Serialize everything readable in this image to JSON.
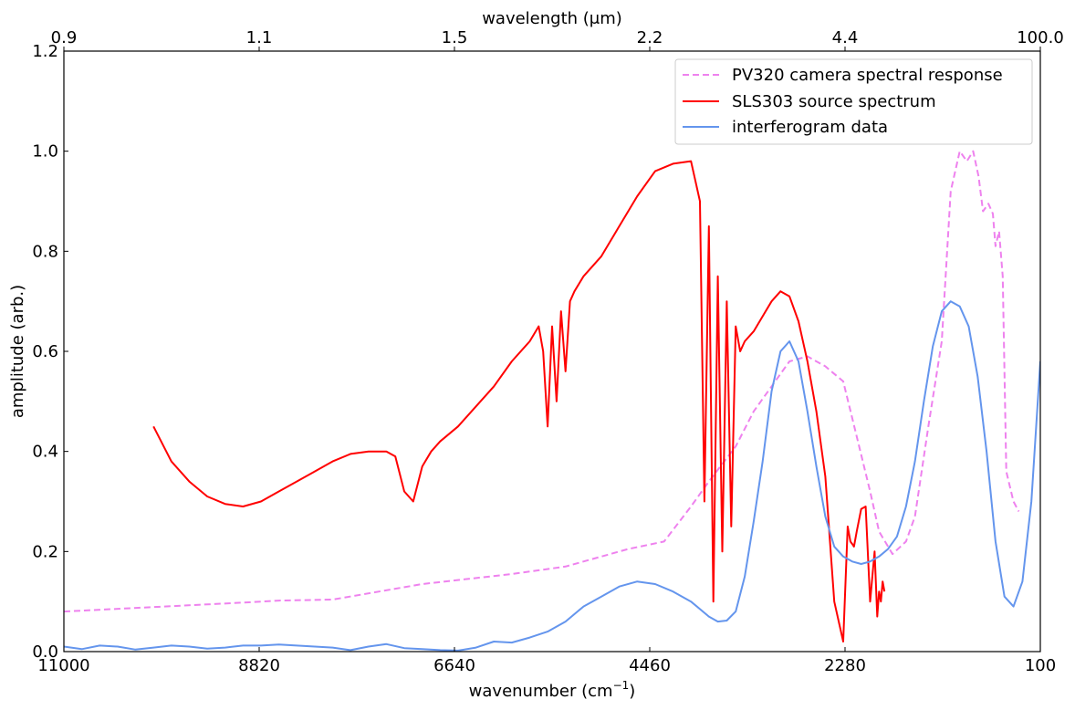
{
  "chart_data": {
    "type": "line",
    "xlabel_bottom": "wavenumber (cm",
    "xlabel_bottom_sup": "−1",
    "xlabel_bottom_end": ")",
    "xlabel_top": "wavelength (μm)",
    "ylabel": "amplitude (arb.)",
    "xlim": [
      11000,
      100
    ],
    "ylim": [
      0,
      1.2
    ],
    "x_ticks": [
      11000,
      8820,
      6640,
      4460,
      2280,
      100
    ],
    "x_tick_labels": [
      "11000",
      "8820",
      "6640",
      "4460",
      "2280",
      "100"
    ],
    "y_ticks": [
      0.0,
      0.2,
      0.4,
      0.6,
      0.8,
      1.0,
      1.2
    ],
    "y_tick_labels": [
      "0.0",
      "0.2",
      "0.4",
      "0.6",
      "0.8",
      "1.0",
      "1.2"
    ],
    "top_ticks": [
      11000,
      8820,
      6640,
      4460,
      2280,
      100
    ],
    "top_tick_labels": [
      "0.9",
      "1.1",
      "1.5",
      "2.2",
      "4.4",
      "100.0"
    ],
    "legend_position": "top-right",
    "series": [
      {
        "name": "PV320 camera spectral response",
        "color": "#ee82ee",
        "dash": "dashed",
        "x": [
          11000,
          10000,
          9000,
          8600,
          8000,
          7000,
          6000,
          5400,
          5000,
          4700,
          4300,
          4000,
          3800,
          3500,
          3300,
          3100,
          2900,
          2700,
          2500,
          2300,
          2150,
          2000,
          1900,
          1750,
          1600,
          1500,
          1350,
          1200,
          1100,
          1000,
          920,
          850,
          790,
          740,
          680,
          630,
          600,
          560,
          520,
          480,
          440,
          400,
          340
        ],
        "y": [
          0.08,
          0.089,
          0.098,
          0.102,
          0.104,
          0.135,
          0.155,
          0.17,
          0.19,
          0.205,
          0.22,
          0.29,
          0.34,
          0.41,
          0.48,
          0.53,
          0.58,
          0.59,
          0.57,
          0.54,
          0.43,
          0.32,
          0.24,
          0.195,
          0.22,
          0.27,
          0.45,
          0.62,
          0.92,
          1.0,
          0.98,
          1.0,
          0.95,
          0.88,
          0.895,
          0.875,
          0.81,
          0.84,
          0.75,
          0.36,
          0.33,
          0.3,
          0.28
        ]
      },
      {
        "name": "SLS303 source spectrum",
        "color": "#ff0000",
        "dash": "solid",
        "x": [
          10000,
          9800,
          9600,
          9400,
          9200,
          9000,
          8800,
          8600,
          8400,
          8200,
          8000,
          7800,
          7600,
          7400,
          7300,
          7200,
          7100,
          7000,
          6900,
          6800,
          6600,
          6400,
          6200,
          6000,
          5800,
          5700,
          5650,
          5600,
          5550,
          5500,
          5450,
          5400,
          5350,
          5300,
          5200,
          5000,
          4800,
          4600,
          4400,
          4200,
          4000,
          3900,
          3850,
          3800,
          3750,
          3700,
          3650,
          3600,
          3550,
          3500,
          3450,
          3400,
          3300,
          3200,
          3100,
          3000,
          2900,
          2800,
          2700,
          2600,
          2500,
          2400,
          2300,
          2250,
          2220,
          2200,
          2180,
          2150,
          2100,
          2050,
          2000,
          1950,
          1920,
          1900,
          1880,
          1860,
          1840
        ],
        "y": [
          0.45,
          0.38,
          0.34,
          0.31,
          0.295,
          0.29,
          0.3,
          0.32,
          0.34,
          0.36,
          0.38,
          0.395,
          0.4,
          0.4,
          0.39,
          0.32,
          0.3,
          0.37,
          0.4,
          0.42,
          0.45,
          0.49,
          0.53,
          0.58,
          0.62,
          0.65,
          0.6,
          0.45,
          0.65,
          0.5,
          0.68,
          0.56,
          0.7,
          0.72,
          0.75,
          0.79,
          0.85,
          0.91,
          0.96,
          0.975,
          0.98,
          0.9,
          0.3,
          0.85,
          0.1,
          0.75,
          0.2,
          0.7,
          0.25,
          0.65,
          0.6,
          0.62,
          0.64,
          0.67,
          0.7,
          0.72,
          0.71,
          0.66,
          0.58,
          0.48,
          0.35,
          0.1,
          0.02,
          0.25,
          0.22,
          0.215,
          0.21,
          0.24,
          0.285,
          0.29,
          0.1,
          0.2,
          0.07,
          0.12,
          0.1,
          0.14,
          0.12
        ]
      },
      {
        "name": "interferogram data",
        "color": "#6495ed",
        "dash": "solid",
        "x": [
          11000,
          10800,
          10600,
          10400,
          10200,
          10000,
          9800,
          9600,
          9400,
          9200,
          9000,
          8800,
          8600,
          8400,
          8200,
          8000,
          7800,
          7600,
          7400,
          7200,
          7000,
          6800,
          6600,
          6400,
          6200,
          6000,
          5800,
          5600,
          5400,
          5200,
          5000,
          4800,
          4600,
          4400,
          4200,
          4000,
          3800,
          3700,
          3600,
          3500,
          3400,
          3300,
          3200,
          3100,
          3000,
          2900,
          2800,
          2700,
          2600,
          2500,
          2400,
          2300,
          2200,
          2100,
          2000,
          1900,
          1800,
          1700,
          1600,
          1500,
          1400,
          1300,
          1200,
          1100,
          1000,
          900,
          800,
          700,
          600,
          500,
          400,
          300,
          200,
          100
        ],
        "y": [
          0.01,
          0.005,
          0.012,
          0.01,
          0.004,
          0.008,
          0.012,
          0.01,
          0.006,
          0.008,
          0.012,
          0.012,
          0.014,
          0.012,
          0.01,
          0.008,
          0.003,
          0.01,
          0.015,
          0.007,
          0.005,
          0.003,
          0.002,
          0.008,
          0.02,
          0.018,
          0.028,
          0.04,
          0.06,
          0.09,
          0.11,
          0.13,
          0.14,
          0.135,
          0.12,
          0.1,
          0.07,
          0.06,
          0.062,
          0.08,
          0.15,
          0.26,
          0.38,
          0.52,
          0.6,
          0.62,
          0.58,
          0.48,
          0.37,
          0.27,
          0.21,
          0.19,
          0.18,
          0.175,
          0.18,
          0.19,
          0.205,
          0.23,
          0.29,
          0.38,
          0.5,
          0.61,
          0.68,
          0.7,
          0.69,
          0.65,
          0.55,
          0.4,
          0.22,
          0.11,
          0.09,
          0.14,
          0.3,
          0.58
        ]
      }
    ]
  }
}
